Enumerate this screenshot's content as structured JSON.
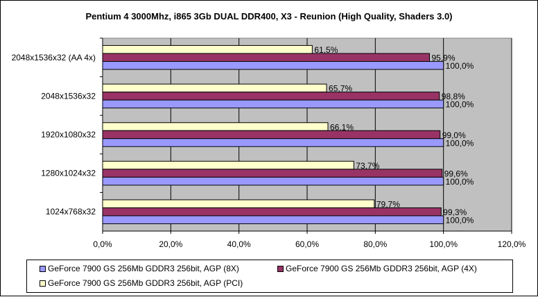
{
  "chart_data": {
    "type": "bar",
    "orientation": "horizontal",
    "title": "Pentium 4 3000Mhz, i865 3Gb DUAL DDR400, X3 - Reunion (High Quality, Shaders 3.0)",
    "categories": [
      "2048x1536x32 (AA 4x)",
      "2048x1536x32",
      "1920x1080x32",
      "1280x1024x32",
      "1024x768x32"
    ],
    "series": [
      {
        "name": "GeForce 7900 GS 256Mb GDDR3 256bit, AGP (8X)",
        "color": "#9999ff",
        "values": [
          100.0,
          100.0,
          100.0,
          100.0,
          100.0
        ],
        "labels": [
          "100,0%",
          "100,0%",
          "100,0%",
          "100,0%",
          "100,0%"
        ]
      },
      {
        "name": "GeForce 7900 GS 256Mb GDDR3 256bit, AGP (4X)",
        "color": "#993366",
        "values": [
          95.9,
          98.8,
          99.0,
          99.6,
          99.3
        ],
        "labels": [
          "95,9%",
          "98,8%",
          "99,0%",
          "99,6%",
          "99,3%"
        ]
      },
      {
        "name": "GeForce 7900 GS 256Mb GDDR3 256bit, AGP (PCI)",
        "color": "#ffffcc",
        "values": [
          61.5,
          65.7,
          66.1,
          73.7,
          79.7
        ],
        "labels": [
          "61,5%",
          "65,7%",
          "66,1%",
          "73,7%",
          "79,7%"
        ]
      }
    ],
    "xlim": [
      0,
      120
    ],
    "xticks": [
      "0,0%",
      "20,0%",
      "40,0%",
      "60,0%",
      "80,0%",
      "100,0%",
      "120,0%"
    ],
    "xlabel": "",
    "ylabel": "",
    "grid": true,
    "plot_background": "#c0c0c0",
    "legend_position": "bottom"
  }
}
